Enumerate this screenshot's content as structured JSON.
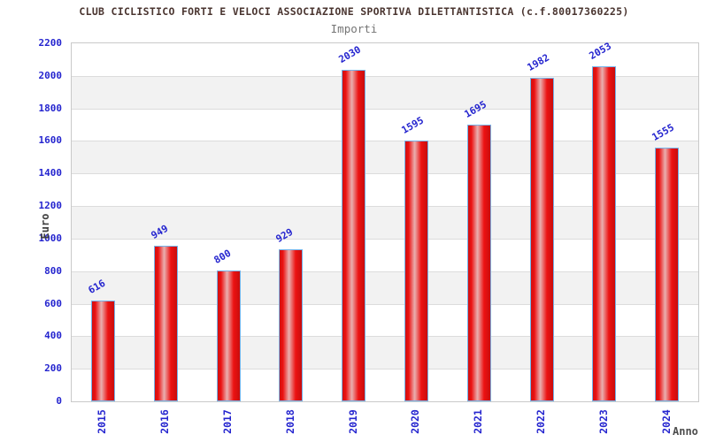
{
  "header": {
    "title": "CLUB CICLISTICO FORTI E VELOCI ASSOCIAZIONE SPORTIVA DILETTANTISTICA (c.f.80017360225)",
    "subtitle": "Importi"
  },
  "chart_data": {
    "type": "bar",
    "title": "CLUB CICLISTICO FORTI E VELOCI ASSOCIAZIONE SPORTIVA DILETTANTISTICA (c.f.80017360225)",
    "subtitle": "Importi",
    "xlabel": "Anno",
    "ylabel": "Euro",
    "categories": [
      "2015",
      "2016",
      "2017",
      "2018",
      "2019",
      "2020",
      "2021",
      "2022",
      "2023",
      "2024"
    ],
    "values": [
      616,
      949,
      800,
      929,
      2030,
      1595,
      1695,
      1982,
      2053,
      1555
    ],
    "ylim": [
      0,
      2200
    ],
    "ytick_step": 200,
    "legend_position": "none",
    "grid": "alternating-horizontal-bands",
    "colors": {
      "bar_fill": "#ec1212",
      "bar_highlight": "#e9b0b0",
      "bar_border": "#74b3ea",
      "label_blue": "#2525cf",
      "band_gray": "#f2f2f2",
      "band_white": "#ffffff",
      "frame_border": "#c9c9c9",
      "title_color": "#4a3530",
      "subtitle_color": "#757575"
    }
  }
}
